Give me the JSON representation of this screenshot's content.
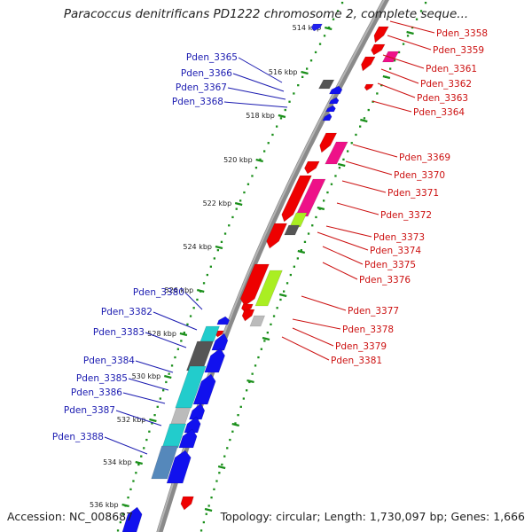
{
  "title": "Paracoccus denitrificans PD1222 chromosome 2, complete seque...",
  "accession_text": "Accession: NC_008687",
  "summary_text": "Topology: circular; Length: 1,730,097 bp; Genes: 1,666",
  "colors": {
    "backbone": "#8a8a8a",
    "ruler_dot": "#1a8f1a",
    "left_label": "#1a1ab0",
    "right_label": "#cc1111"
  },
  "ruler": {
    "unit": "kbp",
    "left_ticks": [
      {
        "label": "514 kbp",
        "kbp": 514
      },
      {
        "label": "516 kbp",
        "kbp": 516
      },
      {
        "label": "518 kbp",
        "kbp": 518
      },
      {
        "label": "520 kbp",
        "kbp": 520
      },
      {
        "label": "522 kbp",
        "kbp": 522
      },
      {
        "label": "524 kbp",
        "kbp": 524
      },
      {
        "label": "526 kbp",
        "kbp": 526
      },
      {
        "label": "528 kbp",
        "kbp": 528
      },
      {
        "label": "530 kbp",
        "kbp": 530
      },
      {
        "label": "532 kbp",
        "kbp": 532
      },
      {
        "label": "534 kbp",
        "kbp": 534
      },
      {
        "label": "536 kbp",
        "kbp": 536
      }
    ]
  },
  "genes_left": [
    {
      "label": "Pden_3365"
    },
    {
      "label": "Pden_3366"
    },
    {
      "label": "Pden_3367"
    },
    {
      "label": "Pden_3368"
    },
    {
      "label": "Pden_3380"
    },
    {
      "label": "Pden_3382"
    },
    {
      "label": "Pden_3383"
    },
    {
      "label": "Pden_3384"
    },
    {
      "label": "Pden_3385"
    },
    {
      "label": "Pden_3386"
    },
    {
      "label": "Pden_3387"
    },
    {
      "label": "Pden_3388"
    }
  ],
  "genes_right": [
    {
      "label": "Pden_3358"
    },
    {
      "label": "Pden_3359"
    },
    {
      "label": "Pden_3361"
    },
    {
      "label": "Pden_3362"
    },
    {
      "label": "Pden_3363"
    },
    {
      "label": "Pden_3364"
    },
    {
      "label": "Pden_3369"
    },
    {
      "label": "Pden_3370"
    },
    {
      "label": "Pden_3371"
    },
    {
      "label": "Pden_3372"
    },
    {
      "label": "Pden_3373"
    },
    {
      "label": "Pden_3374"
    },
    {
      "label": "Pden_3375"
    },
    {
      "label": "Pden_3376"
    },
    {
      "label": "Pden_3377"
    },
    {
      "label": "Pden_3378"
    },
    {
      "label": "Pden_3379"
    },
    {
      "label": "Pden_3381"
    }
  ]
}
